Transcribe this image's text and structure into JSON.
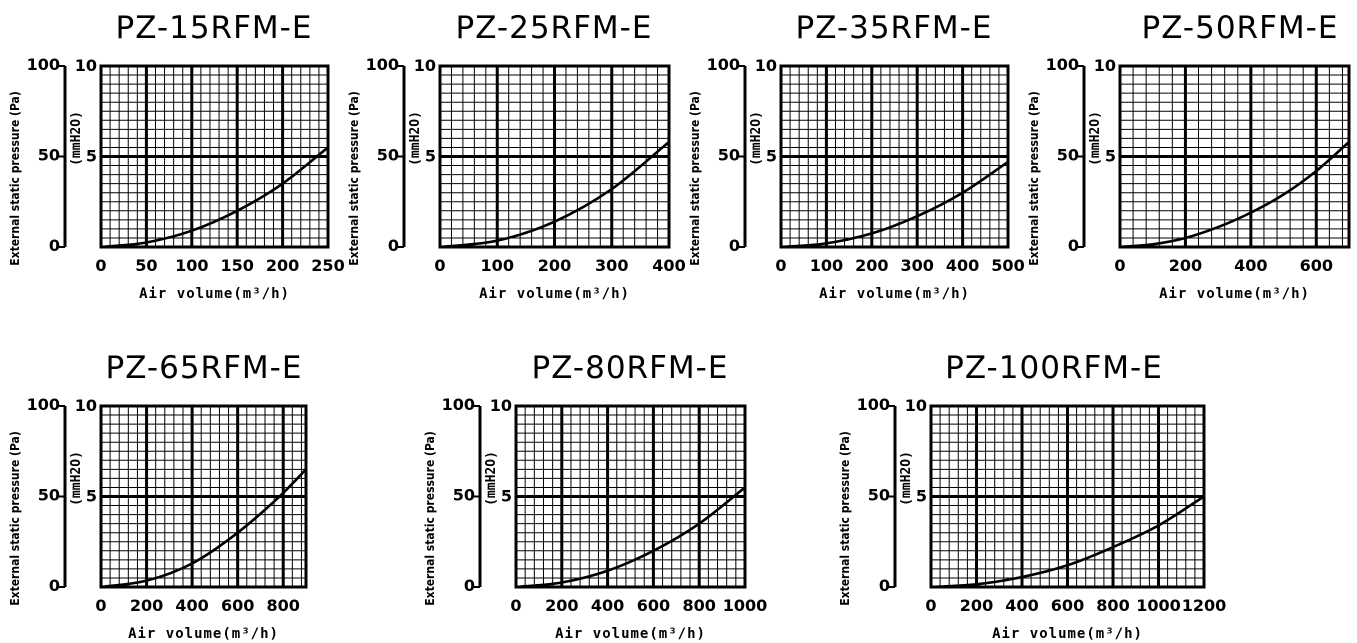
{
  "chart_data": [
    {
      "type": "line",
      "title": "PZ-15RFM-E",
      "xlabel": "Air volume(m³/h)",
      "ylabel": "External static pressure (Pa)",
      "y2label": "(mmH2O)",
      "xlim": [
        0,
        250
      ],
      "ylim": [
        0,
        100
      ],
      "x_ticks": [
        "0",
        "50",
        "100",
        "150",
        "200",
        "250"
      ],
      "y_ticks": [
        "0",
        "50",
        "100"
      ],
      "y2_ticks": [
        "5",
        "10"
      ],
      "grid": true,
      "series": [
        {
          "x": [
            0,
            50,
            100,
            150,
            200,
            250
          ],
          "y": [
            0,
            2.5,
            9,
            20,
            35,
            55
          ]
        }
      ]
    },
    {
      "type": "line",
      "title": "PZ-25RFM-E",
      "xlabel": "Air volume(m³/h)",
      "ylabel": "External static pressure (Pa)",
      "y2label": "(mmH2O)",
      "xlim": [
        0,
        400
      ],
      "ylim": [
        0,
        100
      ],
      "x_ticks": [
        "0",
        "100",
        "200",
        "300",
        "400"
      ],
      "y_ticks": [
        "0",
        "50",
        "100"
      ],
      "y2_ticks": [
        "5",
        "10"
      ],
      "grid": true,
      "series": [
        {
          "x": [
            0,
            100,
            200,
            300,
            400
          ],
          "y": [
            0,
            3.5,
            14,
            32,
            58
          ]
        }
      ]
    },
    {
      "type": "line",
      "title": "PZ-35RFM-E",
      "xlabel": "Air volume(m³/h)",
      "ylabel": "External static pressure (Pa)",
      "y2label": "(mmH2O)",
      "xlim": [
        0,
        500
      ],
      "ylim": [
        0,
        100
      ],
      "x_ticks": [
        "0",
        "100",
        "200",
        "300",
        "400",
        "500"
      ],
      "y_ticks": [
        "0",
        "50",
        "100"
      ],
      "y2_ticks": [
        "5",
        "10"
      ],
      "grid": true,
      "series": [
        {
          "x": [
            0,
            100,
            200,
            300,
            400,
            500
          ],
          "y": [
            0,
            2,
            7.5,
            17,
            30,
            47
          ]
        }
      ]
    },
    {
      "type": "line",
      "title": "PZ-50RFM-E",
      "xlabel": "Air volume(m³/h)",
      "ylabel": "External static pressure (Pa)",
      "y2label": "(mmH2O)",
      "xlim": [
        0,
        700
      ],
      "ylim": [
        0,
        100
      ],
      "x_ticks": [
        "0",
        "200",
        "400",
        "600"
      ],
      "y_ticks": [
        "0",
        "50",
        "100"
      ],
      "y2_ticks": [
        "5",
        "10"
      ],
      "grid": true,
      "series": [
        {
          "x": [
            0,
            100,
            200,
            300,
            400,
            500,
            600,
            700
          ],
          "y": [
            0,
            1.5,
            5,
            11,
            19,
            29,
            42,
            58
          ]
        }
      ]
    },
    {
      "type": "line",
      "title": "PZ-65RFM-E",
      "xlabel": "Air volume(m³/h)",
      "ylabel": "External static pressure (Pa)",
      "y2label": "(mmH2O)",
      "xlim": [
        0,
        900
      ],
      "ylim": [
        0,
        100
      ],
      "x_ticks": [
        "0",
        "200",
        "400",
        "600",
        "800"
      ],
      "y_ticks": [
        "0",
        "50",
        "100"
      ],
      "y2_ticks": [
        "5",
        "10"
      ],
      "grid": true,
      "series": [
        {
          "x": [
            0,
            200,
            400,
            600,
            800,
            900
          ],
          "y": [
            0,
            3.5,
            13,
            30,
            52,
            65
          ]
        }
      ]
    },
    {
      "type": "line",
      "title": "PZ-80RFM-E",
      "xlabel": "Air volume(m³/h)",
      "ylabel": "External static pressure (Pa)",
      "y2label": "(mmH2O)",
      "xlim": [
        0,
        1000
      ],
      "ylim": [
        0,
        100
      ],
      "x_ticks": [
        "0",
        "200",
        "400",
        "600",
        "800",
        "1000"
      ],
      "y_ticks": [
        "0",
        "50",
        "100"
      ],
      "y2_ticks": [
        "5",
        "10"
      ],
      "grid": true,
      "series": [
        {
          "x": [
            0,
            200,
            400,
            600,
            800,
            1000
          ],
          "y": [
            0,
            2.5,
            9,
            20,
            35,
            55
          ]
        }
      ]
    },
    {
      "type": "line",
      "title": "PZ-100RFM-E",
      "xlabel": "Air volume(m³/h)",
      "ylabel": "External static pressure (Pa)",
      "y2label": "(mmH2O)",
      "xlim": [
        0,
        1200
      ],
      "ylim": [
        0,
        100
      ],
      "x_ticks": [
        "0",
        "200",
        "400",
        "600",
        "800",
        "1000",
        "1200"
      ],
      "y_ticks": [
        "0",
        "50",
        "100"
      ],
      "y2_ticks": [
        "5",
        "10"
      ],
      "grid": true,
      "series": [
        {
          "x": [
            0,
            200,
            400,
            600,
            800,
            1000,
            1200
          ],
          "y": [
            0,
            1.5,
            5.5,
            12,
            22,
            34,
            50
          ]
        }
      ]
    }
  ]
}
